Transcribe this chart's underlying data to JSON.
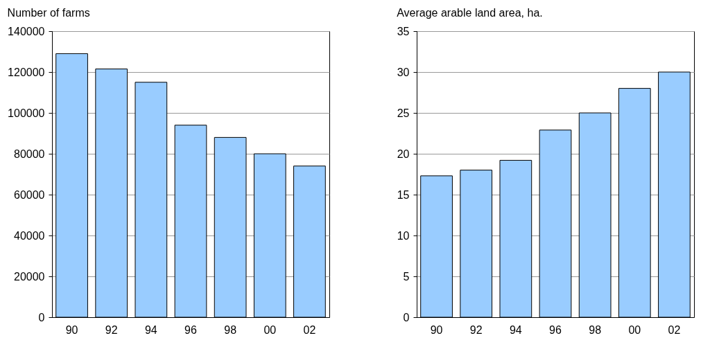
{
  "chart_data": [
    {
      "type": "bar",
      "title": "Number of farms",
      "categories": [
        "90",
        "92",
        "94",
        "96",
        "98",
        "00",
        "02"
      ],
      "values": [
        129000,
        121500,
        115000,
        94000,
        88000,
        80000,
        74000
      ],
      "color": "#99ccff",
      "ylim": [
        0,
        140000
      ],
      "yticks": [
        0,
        20000,
        40000,
        60000,
        80000,
        100000,
        120000,
        140000
      ],
      "grid": "y"
    },
    {
      "type": "bar",
      "title": "Average arable land area, ha.",
      "categories": [
        "90",
        "92",
        "94",
        "96",
        "98",
        "00",
        "02"
      ],
      "values": [
        17.3,
        18,
        19.2,
        22.9,
        25,
        28,
        30
      ],
      "color": "#99ccff",
      "ylim": [
        0,
        35
      ],
      "yticks": [
        0,
        5,
        10,
        15,
        20,
        25,
        30,
        35
      ],
      "grid": "y"
    }
  ]
}
